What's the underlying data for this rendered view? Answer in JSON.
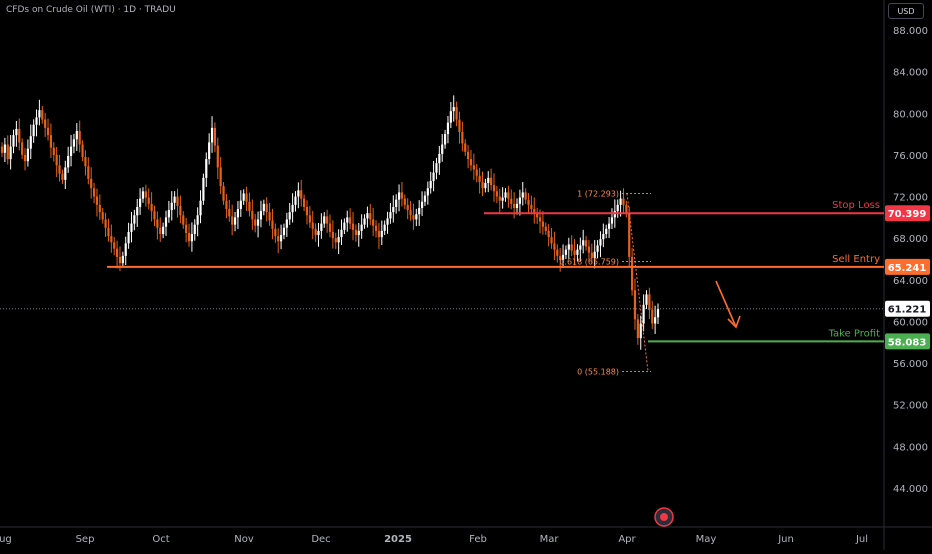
{
  "header": {
    "symbol_title": "CFDs on Crude Oil (WTI) · 1D · TRADU",
    "currency": "USD"
  },
  "chart_data": {
    "type": "candlestick",
    "title": "CFDs on Crude Oil (WTI) · 1D · TRADU",
    "y_axis": {
      "ticks": [
        "88.000",
        "84.000",
        "80.000",
        "76.000",
        "72.000",
        "68.000",
        "64.000",
        "60.000",
        "56.000",
        "52.000",
        "48.000",
        "44.000"
      ],
      "min": 41.5,
      "max": 90,
      "side": "right"
    },
    "x_axis": {
      "labels": [
        "Aug",
        "Sep",
        "Oct",
        "Nov",
        "Dec",
        "2025",
        "Feb",
        "Mar",
        "Apr",
        "May",
        "Jun",
        "Jul"
      ],
      "bold_labels": [
        "2025"
      ]
    },
    "current_price": 61.221,
    "levels": [
      {
        "name": "Stop Loss",
        "price": 70.399,
        "price_label": "70.399",
        "color": "#f23645"
      },
      {
        "name": "Sell Entry",
        "price": 65.241,
        "price_label": "65.241",
        "color": "#ff6d2d"
      },
      {
        "name": "Take Profit",
        "price": 58.083,
        "price_label": "58.083",
        "color": "#4caf50"
      }
    ],
    "fibonacci": [
      {
        "label": "1 (72.293)",
        "price": 72.293
      },
      {
        "label": "0.618 (65.759)",
        "price": 65.759
      },
      {
        "label": "0 (55.188)",
        "price": 55.188
      }
    ],
    "series": [
      {
        "name": "",
        "closes": [
          76.2,
          77.0,
          75.6,
          76.8,
          77.9,
          78.5,
          77.2,
          76.0,
          75.4,
          76.6,
          77.8,
          78.9,
          79.6,
          80.3,
          79.4,
          78.6,
          77.9,
          76.7,
          76.0,
          75.0,
          74.2,
          73.6,
          74.8,
          75.9,
          76.8,
          77.5,
          78.3,
          77.0,
          75.8,
          74.9,
          73.7,
          72.8,
          72.0,
          71.2,
          70.5,
          69.8,
          69.0,
          68.2,
          67.6,
          67.0,
          66.2,
          65.6,
          66.3,
          67.5,
          68.6,
          69.4,
          70.2,
          71.0,
          71.8,
          72.5,
          71.9,
          71.3,
          70.6,
          69.8,
          69.0,
          68.4,
          69.1,
          70.0,
          70.7,
          71.4,
          72.0,
          71.1,
          70.2,
          69.3,
          68.5,
          67.7,
          68.4,
          69.3,
          70.2,
          71.6,
          73.8,
          75.6,
          77.2,
          78.6,
          76.9,
          74.8,
          73.0,
          71.6,
          70.8,
          70.1,
          69.3,
          70.0,
          70.8,
          71.6,
          72.3,
          71.5,
          70.6,
          69.8,
          69.2,
          69.8,
          70.6,
          71.3,
          70.5,
          69.7,
          68.9,
          68.2,
          67.7,
          68.3,
          69.0,
          69.8,
          70.5,
          71.2,
          72.0,
          72.6,
          71.8,
          71.0,
          70.2,
          69.5,
          68.9,
          68.3,
          68.7,
          69.4,
          70.1,
          69.4,
          68.6,
          68.0,
          67.6,
          68.1,
          68.8,
          69.5,
          70.0,
          69.4,
          68.8,
          68.3,
          68.7,
          69.3,
          69.9,
          70.4,
          69.8,
          69.2,
          68.7,
          68.1,
          68.7,
          69.3,
          69.9,
          70.5,
          71.0,
          71.7,
          72.4,
          71.8,
          71.2,
          70.7,
          70.2,
          69.8,
          70.3,
          70.9,
          71.5,
          72.1,
          72.8,
          73.5,
          74.3,
          75.2,
          76.1,
          77.0,
          78.0,
          79.1,
          80.2,
          80.6,
          79.4,
          78.2,
          77.1,
          76.3,
          75.6,
          75.0,
          74.6,
          74.0,
          73.4,
          72.8,
          73.3,
          73.8,
          73.1,
          72.5,
          72.0,
          71.6,
          71.9,
          72.4,
          71.8,
          71.3,
          70.9,
          71.3,
          71.9,
          72.4,
          71.7,
          71.2,
          70.8,
          70.4,
          70.0,
          69.6,
          69.1,
          68.7,
          68.1,
          67.5,
          66.9,
          66.3,
          65.9,
          66.4,
          66.9,
          67.4,
          66.8,
          66.4,
          66.9,
          67.3,
          67.8,
          67.2,
          66.6,
          66.1,
          66.7,
          67.3,
          67.9,
          68.4,
          68.9,
          69.4,
          70.0,
          70.6,
          71.2,
          71.8,
          71.2,
          70.4,
          66.2,
          63.0,
          60.2,
          58.4,
          59.8,
          61.6,
          62.6,
          61.1,
          59.8,
          60.4,
          61.2
        ]
      }
    ]
  }
}
